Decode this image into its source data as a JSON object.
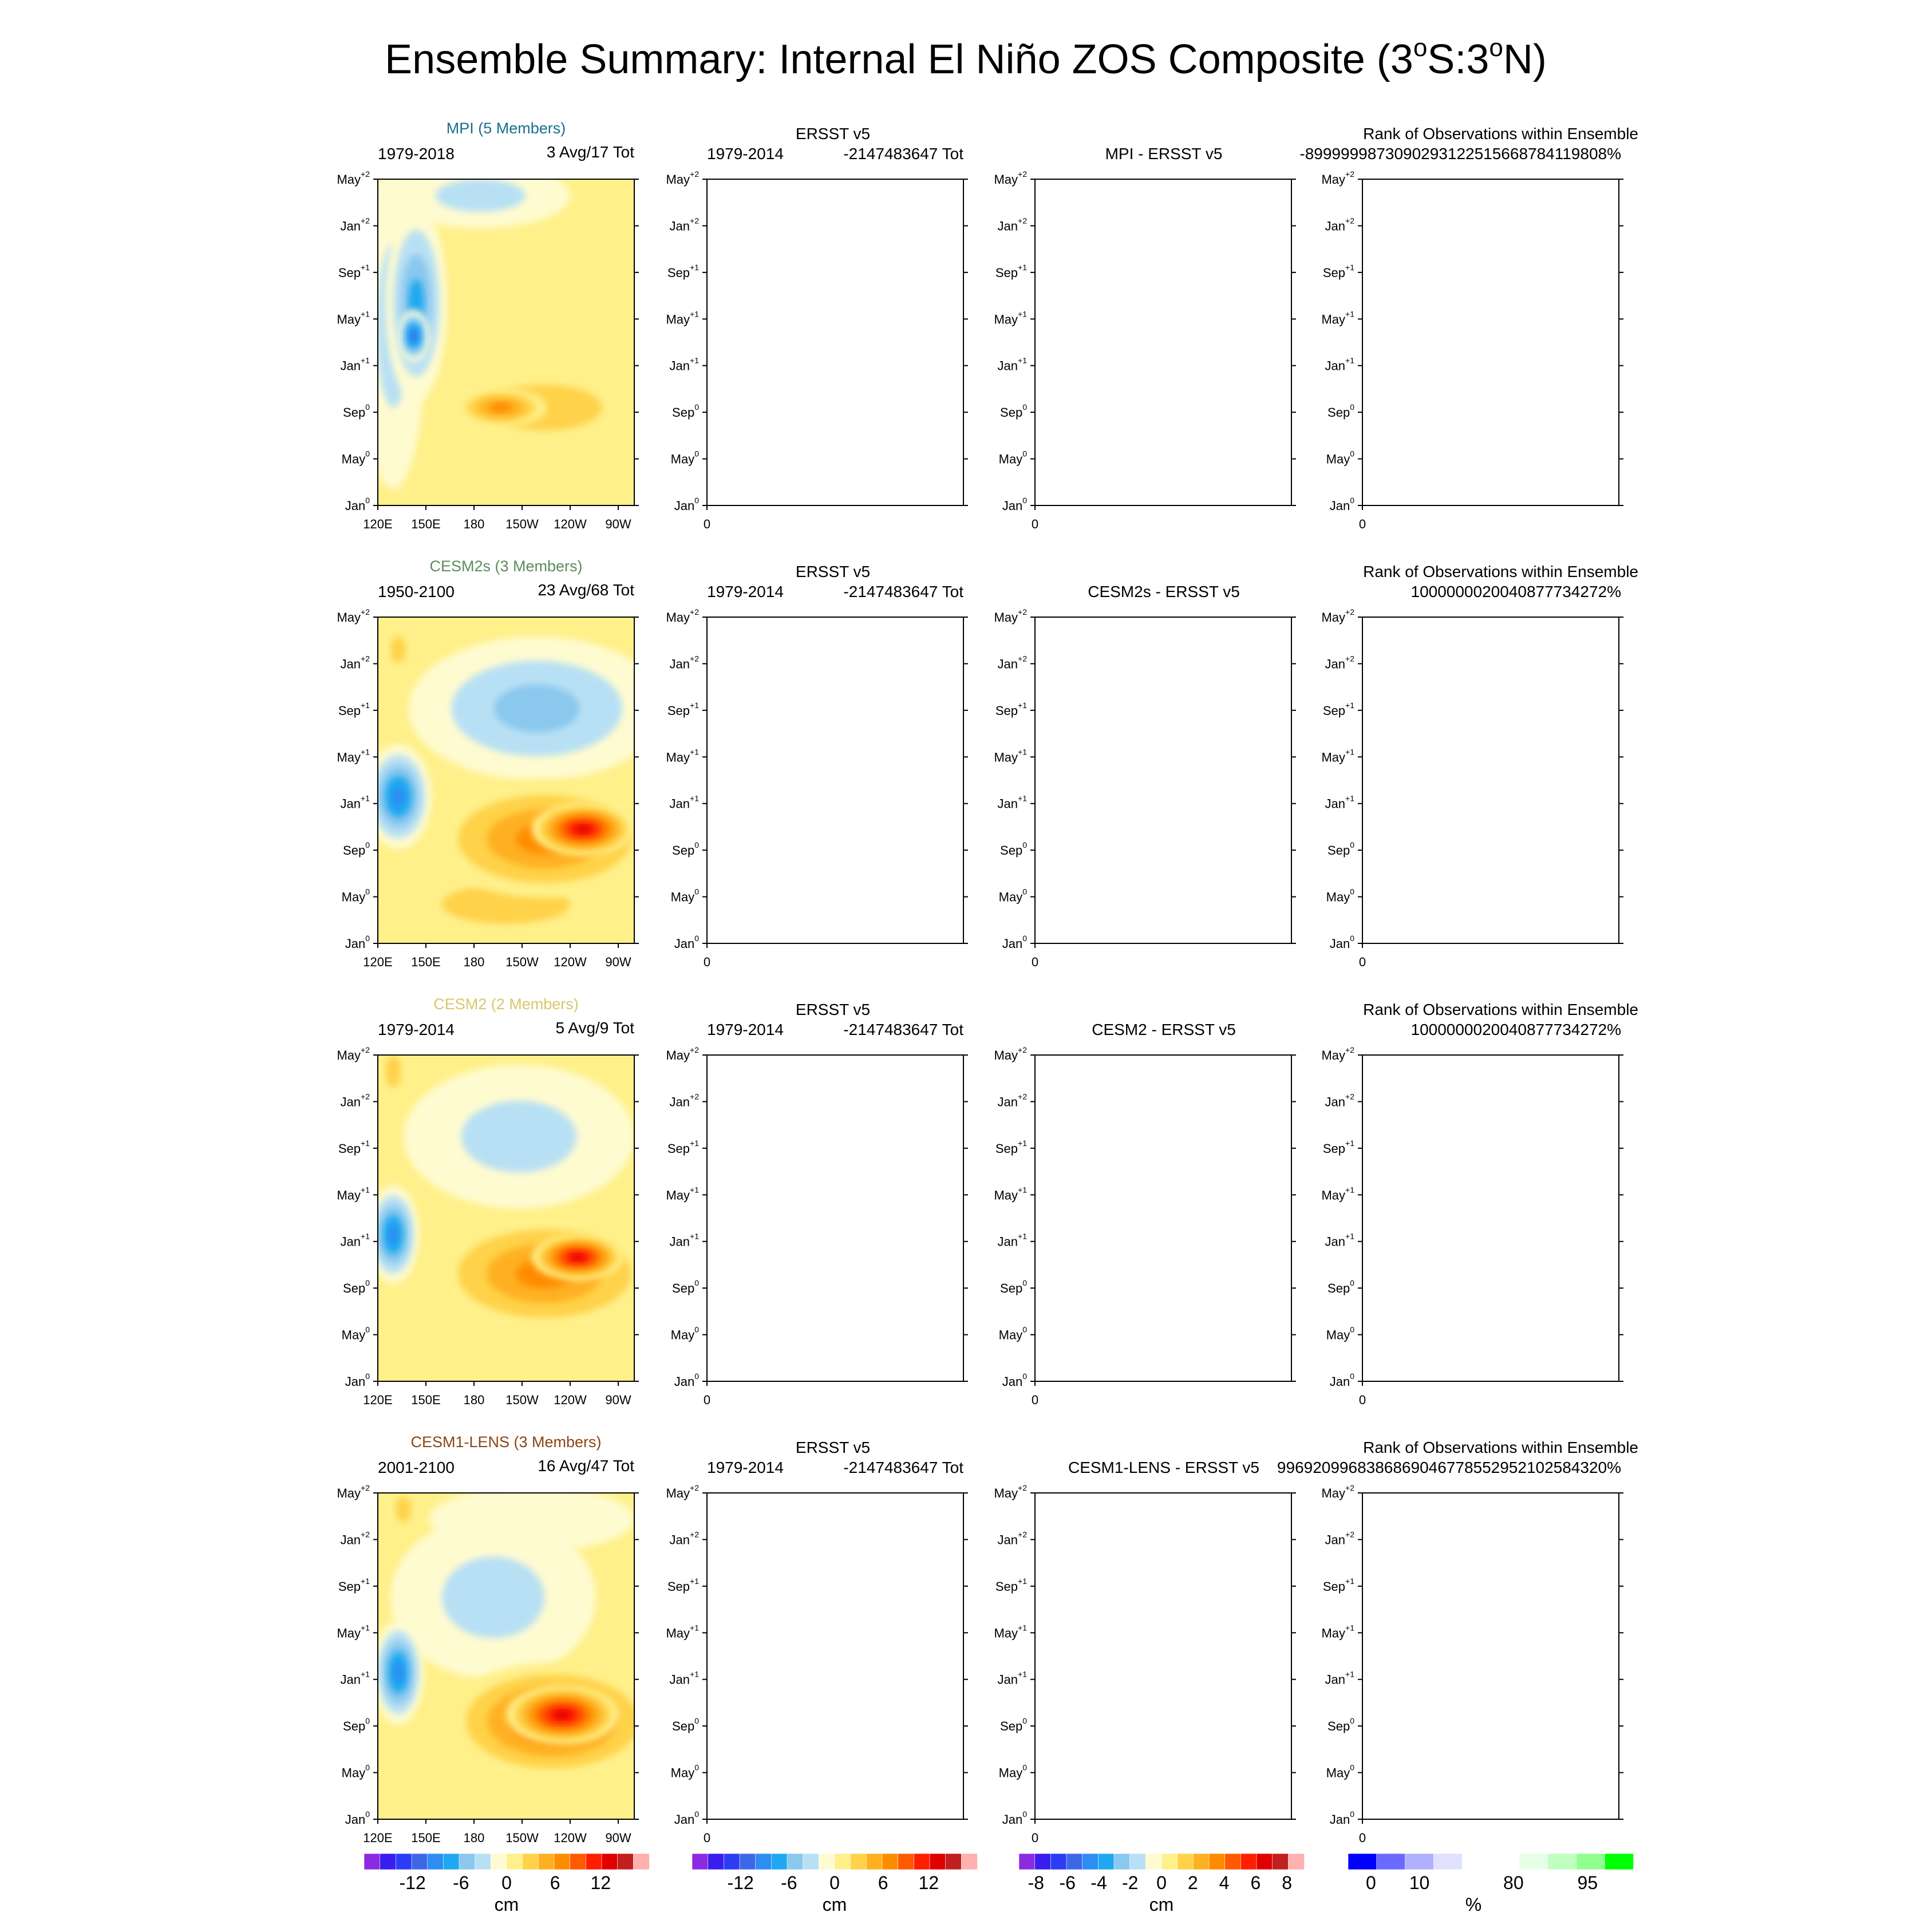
{
  "figure": {
    "title": "Ensemble Summary: Internal El Niño ZOS Composite (3",
    "title_deg1": "o",
    "title_mid": "S:3",
    "title_deg2": "o",
    "title_end": "N)"
  },
  "colors": {
    "cm_scale": [
      "#8a2be2",
      "#3a1ef0",
      "#2c3cf5",
      "#3c68e8",
      "#2d8df2",
      "#1fa8f0",
      "#8ac8ee",
      "#b8e0f4",
      "#fffbd0",
      "#fff08a",
      "#ffd24a",
      "#ffb020",
      "#ff8c00",
      "#ff5a00",
      "#ff1e00",
      "#e00000",
      "#c02020",
      "#ffb0b0"
    ],
    "diff_scale": [
      "#8a2be2",
      "#3a1ef0",
      "#2c3cf5",
      "#3c68e8",
      "#2d8df2",
      "#1fa8f0",
      "#8ac8ee",
      "#b8e0f4",
      "#fffbd0",
      "#fff08a",
      "#ffd24a",
      "#ffb020",
      "#ff8c00",
      "#ff5a00",
      "#ff1e00",
      "#e00000",
      "#c02020",
      "#ffb0b0"
    ],
    "pct_scale": [
      "#0000ff",
      "#6a6aff",
      "#b0b0ff",
      "#e0e0ff",
      "#ffffff",
      "#ffffff",
      "#e6ffe6",
      "#c0ffc0",
      "#90ff90",
      "#00ff00"
    ],
    "model_title_colors": [
      "#1a6f8c",
      "#5d8c5d",
      "#d9c86a",
      "#8b4513"
    ]
  },
  "chart_data": [
    {
      "type": "heatmap",
      "model": "MPI (5 Members)",
      "years": "1979-2018",
      "counts": "3 Avg/17 Tot",
      "obs_title": "ERSST v5",
      "obs_years": "1979-2014",
      "obs_counts": "-2147483647 Tot",
      "diff_title": "MPI - ERSST v5",
      "rank_title": "Rank of Observations within Ensemble",
      "rank_value": "-8999999873090293122515668784119808%",
      "x_ticks": [
        "120E",
        "150E",
        "180",
        "150W",
        "120W",
        "90W"
      ],
      "y_ticks": [
        [
          "Jan",
          "0"
        ],
        [
          "May",
          "0"
        ],
        [
          "Sep",
          "0"
        ],
        [
          "Jan",
          "+1"
        ],
        [
          "May",
          "+1"
        ],
        [
          "Sep",
          "+1"
        ],
        [
          "Jan",
          "+2"
        ],
        [
          "May",
          "+2"
        ]
      ],
      "blank_x_tick": "0",
      "blobs": [
        {
          "lon": 0.06,
          "time": 0.55,
          "rx": 0.13,
          "ry": 0.5,
          "value": -4
        },
        {
          "lon": 0.15,
          "time": 0.62,
          "rx": 0.12,
          "ry": 0.3,
          "value": -7
        },
        {
          "lon": 0.14,
          "time": 0.52,
          "rx": 0.06,
          "ry": 0.08,
          "value": -11
        },
        {
          "lon": 0.65,
          "time": 0.3,
          "rx": 0.45,
          "ry": 0.14,
          "value": 4
        },
        {
          "lon": 0.48,
          "time": 0.3,
          "rx": 0.18,
          "ry": 0.06,
          "value": 7
        },
        {
          "lon": 0.7,
          "time": 0.78,
          "rx": 0.45,
          "ry": 0.32,
          "value": 1
        },
        {
          "lon": 0.4,
          "time": 0.95,
          "rx": 0.35,
          "ry": 0.1,
          "value": -3
        }
      ]
    },
    {
      "type": "heatmap",
      "model": "CESM2s (3 Members)",
      "years": "1950-2100",
      "counts": "23 Avg/68 Tot",
      "obs_title": "ERSST v5",
      "obs_years": "1979-2014",
      "obs_counts": "-2147483647 Tot",
      "diff_title": "CESM2s - ERSST v5",
      "rank_title": "Rank of Observations within Ensemble",
      "rank_value": "1000000020040877734272%",
      "x_ticks": [
        "120E",
        "150E",
        "180",
        "150W",
        "120W",
        "90W"
      ],
      "y_ticks": [
        [
          "Jan",
          "0"
        ],
        [
          "May",
          "0"
        ],
        [
          "Sep",
          "0"
        ],
        [
          "Jan",
          "+1"
        ],
        [
          "May",
          "+1"
        ],
        [
          "Sep",
          "+1"
        ],
        [
          "Jan",
          "+2"
        ],
        [
          "May",
          "+2"
        ]
      ],
      "blank_x_tick": "0",
      "blobs": [
        {
          "lon": 0.62,
          "time": 0.72,
          "rx": 0.5,
          "ry": 0.22,
          "value": -6
        },
        {
          "lon": 0.08,
          "time": 0.45,
          "rx": 0.13,
          "ry": 0.16,
          "value": -9
        },
        {
          "lon": 0.65,
          "time": 0.32,
          "rx": 0.45,
          "ry": 0.18,
          "value": 8
        },
        {
          "lon": 0.8,
          "time": 0.35,
          "rx": 0.2,
          "ry": 0.08,
          "value": 13
        },
        {
          "lon": 0.5,
          "time": 0.12,
          "rx": 0.5,
          "ry": 0.12,
          "value": 3
        },
        {
          "lon": 0.08,
          "time": 0.9,
          "rx": 0.06,
          "ry": 0.08,
          "value": 4
        }
      ]
    },
    {
      "type": "heatmap",
      "model": "CESM2 (2 Members)",
      "years": "1979-2014",
      "counts": "5 Avg/9 Tot",
      "obs_title": "ERSST v5",
      "obs_years": "1979-2014",
      "obs_counts": "-2147483647 Tot",
      "diff_title": "CESM2 - ERSST v5",
      "rank_title": "Rank of Observations within Ensemble",
      "rank_value": "1000000020040877734272%",
      "x_ticks": [
        "120E",
        "150E",
        "180",
        "150W",
        "120W",
        "90W"
      ],
      "y_ticks": [
        [
          "Jan",
          "0"
        ],
        [
          "May",
          "0"
        ],
        [
          "Sep",
          "0"
        ],
        [
          "Jan",
          "+1"
        ],
        [
          "May",
          "+1"
        ],
        [
          "Sep",
          "+1"
        ],
        [
          "Jan",
          "+2"
        ],
        [
          "May",
          "+2"
        ]
      ],
      "blank_x_tick": "0",
      "blobs": [
        {
          "lon": 0.55,
          "time": 0.75,
          "rx": 0.45,
          "ry": 0.22,
          "value": -4
        },
        {
          "lon": 0.06,
          "time": 0.45,
          "rx": 0.1,
          "ry": 0.15,
          "value": -9
        },
        {
          "lon": 0.65,
          "time": 0.33,
          "rx": 0.45,
          "ry": 0.18,
          "value": 7
        },
        {
          "lon": 0.78,
          "time": 0.38,
          "rx": 0.18,
          "ry": 0.07,
          "value": 13
        },
        {
          "lon": 0.5,
          "time": 0.1,
          "rx": 0.55,
          "ry": 0.12,
          "value": 2
        },
        {
          "lon": 0.06,
          "time": 0.95,
          "rx": 0.06,
          "ry": 0.1,
          "value": 4
        }
      ]
    },
    {
      "type": "heatmap",
      "model": "CESM1-LENS (3 Members)",
      "years": "2001-2100",
      "counts": "16 Avg/47 Tot",
      "obs_title": "ERSST v5",
      "obs_years": "1979-2014",
      "obs_counts": "-2147483647 Tot",
      "diff_title": "CESM1-LENS - ERSST v5",
      "rank_title": "Rank of Observations within Ensemble",
      "rank_value": "9969209968386869046778552952102584320%",
      "x_ticks": [
        "120E",
        "150E",
        "180",
        "150W",
        "120W",
        "90W"
      ],
      "y_ticks": [
        [
          "Jan",
          "0"
        ],
        [
          "May",
          "0"
        ],
        [
          "Sep",
          "0"
        ],
        [
          "Jan",
          "+1"
        ],
        [
          "May",
          "+1"
        ],
        [
          "Sep",
          "+1"
        ],
        [
          "Jan",
          "+2"
        ],
        [
          "May",
          "+2"
        ]
      ],
      "blank_x_tick": "0",
      "blobs": [
        {
          "lon": 0.45,
          "time": 0.68,
          "rx": 0.4,
          "ry": 0.25,
          "value": -3
        },
        {
          "lon": 0.08,
          "time": 0.45,
          "rx": 0.1,
          "ry": 0.16,
          "value": -9
        },
        {
          "lon": 0.68,
          "time": 0.3,
          "rx": 0.42,
          "ry": 0.18,
          "value": 9
        },
        {
          "lon": 0.72,
          "time": 0.32,
          "rx": 0.22,
          "ry": 0.09,
          "value": 14
        },
        {
          "lon": 0.6,
          "time": 0.92,
          "rx": 0.4,
          "ry": 0.1,
          "value": -2
        },
        {
          "lon": 0.1,
          "time": 0.95,
          "rx": 0.06,
          "ry": 0.08,
          "value": 3
        }
      ]
    }
  ],
  "legends": [
    {
      "labels": [
        "-12",
        "-6",
        "0",
        "6",
        "12"
      ],
      "unit": "cm"
    },
    {
      "labels": [
        "-12",
        "-6",
        "0",
        "6",
        "12"
      ],
      "unit": "cm"
    },
    {
      "labels": [
        "-8",
        "-6",
        "-4",
        "-2",
        "0",
        "2",
        "4",
        "6",
        "8"
      ],
      "unit": "cm"
    },
    {
      "labels": [
        "0",
        "10",
        "80",
        "95"
      ],
      "unit": "%"
    }
  ]
}
